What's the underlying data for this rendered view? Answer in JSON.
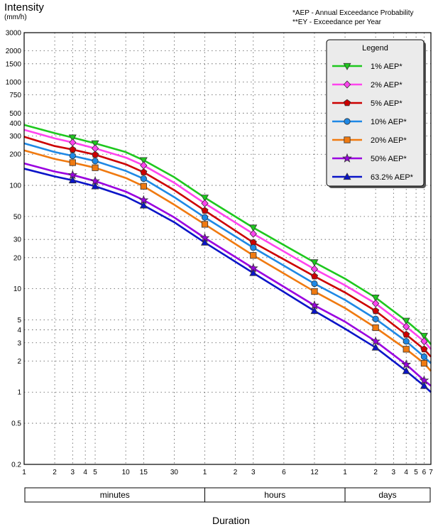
{
  "header": {
    "title": "Intensity",
    "unit": "(mm/h)",
    "note_aep": "*AEP - Annual Exceedance Probability",
    "note_ey": "**EY - Exceedance per Year"
  },
  "x_title": "Duration",
  "legend_title": "Legend",
  "chart_data": {
    "type": "line",
    "title": "",
    "ylabel": "Intensity (mm/h)",
    "xlabel": "Duration",
    "y_scale": "log",
    "x_scale": "log",
    "ylim": [
      0.2,
      3000
    ],
    "xlim_minutes": [
      1,
      10080
    ],
    "grid": true,
    "legend_position": "top-right",
    "y_ticks": [
      0.2,
      0.5,
      1,
      2,
      3,
      4,
      5,
      10,
      20,
      30,
      50,
      100,
      200,
      300,
      400,
      500,
      750,
      1000,
      1500,
      2000,
      3000
    ],
    "x_ticks": [
      {
        "label": "1",
        "minutes": 1
      },
      {
        "label": "2",
        "minutes": 2
      },
      {
        "label": "3",
        "minutes": 3
      },
      {
        "label": "4",
        "minutes": 4
      },
      {
        "label": "5",
        "minutes": 5
      },
      {
        "label": "10",
        "minutes": 10
      },
      {
        "label": "15",
        "minutes": 15
      },
      {
        "label": "30",
        "minutes": 30
      },
      {
        "label": "1",
        "minutes": 60
      },
      {
        "label": "2",
        "minutes": 120
      },
      {
        "label": "3",
        "minutes": 180
      },
      {
        "label": "6",
        "minutes": 360
      },
      {
        "label": "12",
        "minutes": 720
      },
      {
        "label": "1",
        "minutes": 1440
      },
      {
        "label": "2",
        "minutes": 2880
      },
      {
        "label": "3",
        "minutes": 4320
      },
      {
        "label": "4",
        "minutes": 5760
      },
      {
        "label": "5",
        "minutes": 7200
      },
      {
        "label": "6",
        "minutes": 8640
      },
      {
        "label": "7",
        "minutes": 10080
      }
    ],
    "duration_groups": [
      {
        "label": "minutes",
        "from": 1,
        "to": 60
      },
      {
        "label": "hours",
        "from": 60,
        "to": 1440
      },
      {
        "label": "days",
        "from": 1440,
        "to": 10080
      }
    ],
    "x_minutes": [
      1,
      2,
      3,
      5,
      10,
      15,
      30,
      60,
      180,
      720,
      1440,
      2880,
      5760,
      8640,
      10080
    ],
    "marker_x_minutes": [
      3,
      5,
      15,
      60,
      180,
      720,
      2880,
      5760,
      8640
    ],
    "series": [
      {
        "name": "1% AEP*",
        "color": "#1ec81e",
        "marker": "triangle-down",
        "values": [
          385,
          320,
          290,
          255,
          210,
          175,
          120,
          76,
          39,
          18,
          12.5,
          8.2,
          4.9,
          3.5,
          2.9
        ]
      },
      {
        "name": "2% AEP*",
        "color": "#ff44ee",
        "marker": "diamond",
        "values": [
          345,
          285,
          260,
          228,
          186,
          156,
          106,
          67,
          34,
          15.5,
          10.8,
          7.2,
          4.3,
          3.1,
          2.6
        ]
      },
      {
        "name": "5% AEP*",
        "color": "#cc0000",
        "marker": "pentagon",
        "values": [
          295,
          240,
          222,
          198,
          160,
          134,
          90,
          57,
          28,
          13.2,
          9.2,
          6.1,
          3.6,
          2.6,
          2.2
        ]
      },
      {
        "name": "10% AEP*",
        "color": "#1e88e5",
        "marker": "circle",
        "values": [
          255,
          210,
          193,
          172,
          138,
          116,
          77,
          49,
          25,
          11.2,
          7.8,
          5.1,
          3.1,
          2.2,
          1.9
        ]
      },
      {
        "name": "20% AEP*",
        "color": "#f07a10",
        "marker": "square",
        "values": [
          218,
          180,
          166,
          148,
          118,
          98,
          65,
          42,
          21,
          9.4,
          6.5,
          4.2,
          2.6,
          1.9,
          1.6
        ]
      },
      {
        "name": "50% AEP*",
        "color": "#9a00e0",
        "marker": "star",
        "values": [
          163,
          136,
          126,
          110,
          87,
          72,
          49,
          31,
          15.8,
          6.9,
          4.8,
          3.1,
          1.85,
          1.3,
          1.15
        ]
      },
      {
        "name": "63.2% AEP*",
        "color": "#0a14c8",
        "marker": "triangle-up",
        "values": [
          145,
          122,
          112,
          98,
          78,
          64,
          44,
          28,
          14.2,
          6.1,
          4.1,
          2.7,
          1.6,
          1.15,
          1.0
        ]
      }
    ]
  }
}
